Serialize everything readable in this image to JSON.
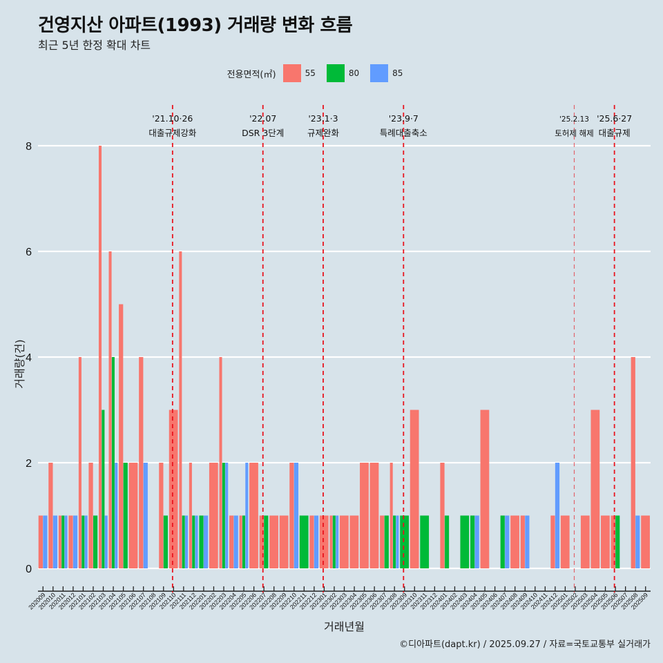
{
  "title": "건영지산 아파트(1993) 거래량 변화 흐름",
  "subtitle": "최근 5년 한정 확대 차트",
  "legend": {
    "title": "전용면적(㎡)",
    "items": [
      {
        "label": "55",
        "color": "#F8766D"
      },
      {
        "label": "80",
        "color": "#00BA38"
      },
      {
        "label": "85",
        "color": "#619CFF"
      }
    ]
  },
  "footer": "©디아파트(dapt.kr) / 2025.09.27 / 자료=국토교통부 실거래가",
  "chart_data": {
    "type": "bar",
    "title": "건영지산 아파트(1993) 거래량 변화 흐름",
    "subtitle": "최근 5년 한정 확대 차트",
    "xlabel": "거래년월",
    "ylabel": "거래량(건)",
    "ylim": [
      0,
      8
    ],
    "yticks": [
      0,
      2,
      4,
      6,
      8
    ],
    "grid": "horizontal major",
    "legend_position": "top",
    "bar_mode": "dodge",
    "categories": [
      "202009",
      "202010",
      "202011",
      "202012",
      "202101",
      "202102",
      "202103",
      "202104",
      "202105",
      "202106",
      "202107",
      "202108",
      "202109",
      "202110",
      "202111",
      "202112",
      "202201",
      "202202",
      "202203",
      "202204",
      "202205",
      "202206",
      "202207",
      "202208",
      "202209",
      "202210",
      "202211",
      "202212",
      "202301",
      "202302",
      "202303",
      "202304",
      "202305",
      "202306",
      "202307",
      "202308",
      "202309",
      "202310",
      "202311",
      "202312",
      "202401",
      "202402",
      "202403",
      "202404",
      "202405",
      "202406",
      "202407",
      "202408",
      "202409",
      "202410",
      "202411",
      "202412",
      "202501",
      "202502",
      "202503",
      "202504",
      "202505",
      "202506",
      "202507",
      "202508",
      "202509"
    ],
    "series": [
      {
        "name": "55",
        "color": "#F8766D",
        "values": [
          1,
          2,
          1,
          1,
          4,
          2,
          8,
          6,
          5,
          2,
          4,
          null,
          2,
          3,
          6,
          2,
          null,
          2,
          4,
          1,
          1,
          2,
          1,
          1,
          1,
          2,
          null,
          1,
          1,
          1,
          1,
          1,
          2,
          2,
          1,
          2,
          null,
          3,
          null,
          null,
          2,
          null,
          null,
          null,
          3,
          null,
          null,
          1,
          1,
          null,
          null,
          1,
          1,
          null,
          1,
          3,
          1,
          1,
          null,
          4,
          1
        ]
      },
      {
        "name": "80",
        "color": "#00BA38",
        "values": [
          null,
          null,
          1,
          null,
          1,
          1,
          3,
          4,
          2,
          null,
          null,
          null,
          1,
          null,
          1,
          1,
          1,
          null,
          2,
          null,
          1,
          null,
          1,
          null,
          null,
          null,
          1,
          null,
          null,
          1,
          null,
          null,
          null,
          null,
          1,
          1,
          1,
          null,
          1,
          null,
          1,
          null,
          1,
          1,
          null,
          null,
          1,
          null,
          null,
          null,
          null,
          null,
          null,
          null,
          null,
          null,
          null,
          1,
          null,
          null,
          null
        ]
      },
      {
        "name": "85",
        "color": "#619CFF",
        "values": [
          1,
          1,
          1,
          1,
          1,
          null,
          1,
          2,
          null,
          null,
          2,
          null,
          null,
          null,
          1,
          1,
          1,
          null,
          2,
          1,
          2,
          null,
          null,
          null,
          null,
          2,
          null,
          1,
          null,
          1,
          null,
          null,
          null,
          null,
          null,
          1,
          null,
          null,
          null,
          null,
          null,
          null,
          null,
          1,
          null,
          null,
          1,
          null,
          1,
          null,
          null,
          2,
          null,
          null,
          null,
          null,
          null,
          null,
          null,
          1,
          null
        ]
      }
    ],
    "annotations": [
      {
        "month": "202110",
        "date": "'21.10·26",
        "label": "대출규제강화",
        "style": "bold"
      },
      {
        "month": "202207",
        "date": "'22.07",
        "label": "DSR 3단계",
        "style": "bold"
      },
      {
        "month": "202301",
        "date": "'23.1·3",
        "label": "규제완화",
        "style": "bold"
      },
      {
        "month": "202309",
        "date": "'23.9·7",
        "label": "특례대출축소",
        "style": "bold"
      },
      {
        "month": "202502",
        "date": "'25.2.13",
        "label": "토허제 해제",
        "style": "light"
      },
      {
        "month": "202506",
        "date": "'25.6·27",
        "label": "대출규제",
        "style": "bold"
      }
    ]
  }
}
